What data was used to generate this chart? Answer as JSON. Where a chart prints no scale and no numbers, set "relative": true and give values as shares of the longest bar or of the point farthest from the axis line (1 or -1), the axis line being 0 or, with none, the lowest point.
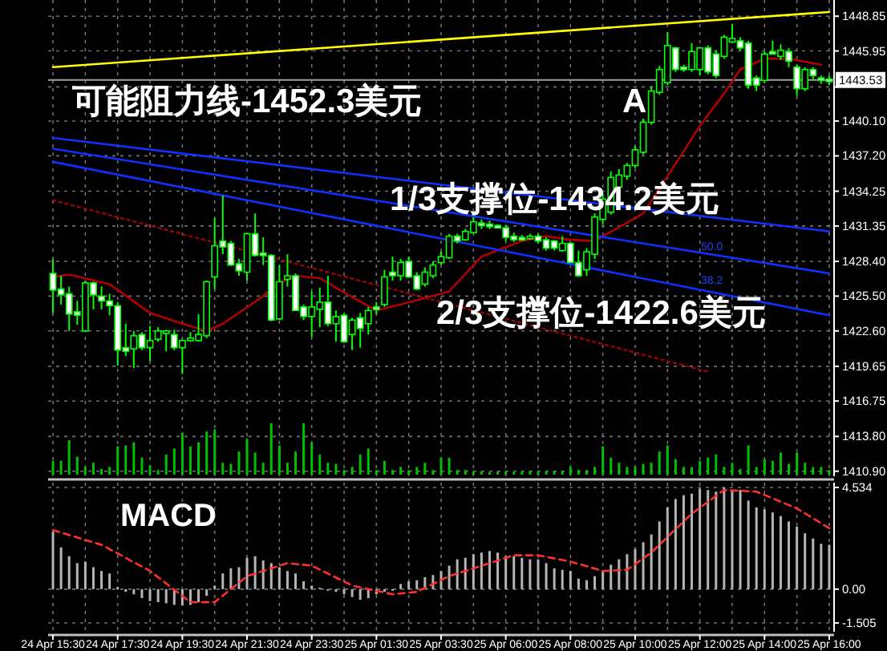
{
  "chart_data": [
    {
      "type": "candlestick",
      "color": "#00ff00",
      "grid": true,
      "categories": [
        null,
        null,
        null,
        null,
        null,
        null,
        null,
        null,
        null,
        null,
        null,
        null,
        null,
        null,
        null,
        null,
        null,
        null,
        null,
        null,
        null,
        null,
        null,
        null,
        null,
        null,
        null,
        null,
        null,
        null,
        null,
        null,
        null,
        null,
        null,
        null,
        null,
        null,
        null,
        null,
        null,
        null,
        null,
        null,
        null,
        null,
        null,
        null,
        null,
        null,
        null,
        null,
        null,
        null,
        null,
        null,
        null,
        null,
        null,
        null,
        null,
        null,
        null,
        null,
        null,
        null,
        null,
        null,
        null,
        null,
        null,
        null,
        null,
        null,
        null,
        null,
        null,
        null,
        null,
        null,
        null,
        null,
        null,
        null,
        null,
        null,
        null,
        null,
        null,
        null,
        null,
        null,
        null,
        null,
        null,
        null,
        null
      ],
      "ohlc": [
        [
          1427.4,
          1428.6,
          1424.1,
          1426.0
        ],
        [
          1426.1,
          1427.2,
          1424.8,
          1425.6
        ],
        [
          1425.7,
          1426.3,
          1422.6,
          1424.0
        ],
        [
          1424.2,
          1425.1,
          1423.1,
          1423.9
        ],
        [
          1422.6,
          1426.8,
          1422.5,
          1426.6
        ],
        [
          1426.6,
          1426.7,
          1424.4,
          1425.6
        ],
        [
          1425.5,
          1426.3,
          1424.4,
          1425.1
        ],
        [
          1425.1,
          1425.7,
          1423.9,
          1424.7
        ],
        [
          1424.7,
          1425.0,
          1419.7,
          1421.0
        ],
        [
          1421.2,
          1423.2,
          1420.5,
          1420.9
        ],
        [
          1421.1,
          1422.6,
          1419.5,
          1422.2
        ],
        [
          1422.3,
          1422.5,
          1421.0,
          1421.2
        ],
        [
          1421.2,
          1423.0,
          1420.1,
          1421.8
        ],
        [
          1421.9,
          1422.9,
          1421.7,
          1422.6
        ],
        [
          1422.5,
          1422.7,
          1420.9,
          1422.6
        ],
        [
          1422.3,
          1422.7,
          1421.0,
          1421.2
        ],
        [
          1421.2,
          1421.9,
          1419.0,
          1421.8
        ],
        [
          1421.8,
          1422.5,
          1421.7,
          1422.0
        ],
        [
          1421.8,
          1424.0,
          1421.7,
          1422.3
        ],
        [
          1422.2,
          1426.8,
          1422.0,
          1426.7
        ],
        [
          1427.1,
          1432.0,
          1426.1,
          1429.7
        ],
        [
          1430.1,
          1433.9,
          1429.0,
          1429.6
        ],
        [
          1429.9,
          1430.1,
          1428.0,
          1428.1
        ],
        [
          1428.2,
          1428.6,
          1427.2,
          1427.6
        ],
        [
          1427.5,
          1430.8,
          1426.8,
          1430.7
        ],
        [
          1430.7,
          1432.4,
          1428.8,
          1428.9
        ],
        [
          1429.1,
          1430.4,
          1428.1,
          1429.0
        ],
        [
          1428.9,
          1429.0,
          1423.4,
          1423.5
        ],
        [
          1423.6,
          1428.1,
          1423.5,
          1426.7
        ],
        [
          1426.9,
          1429.0,
          1426.3,
          1427.2
        ],
        [
          1427.2,
          1427.4,
          1424.3,
          1424.3
        ],
        [
          1424.6,
          1424.8,
          1423.5,
          1423.8
        ],
        [
          1423.8,
          1425.9,
          1422.1,
          1424.6
        ],
        [
          1424.4,
          1426.2,
          1422.9,
          1425.0
        ],
        [
          1425.0,
          1427.2,
          1423.0,
          1423.2
        ],
        [
          1423.2,
          1424.3,
          1421.7,
          1423.8
        ],
        [
          1423.9,
          1424.1,
          1421.6,
          1421.7
        ],
        [
          1422.3,
          1423.7,
          1421.0,
          1423.5
        ],
        [
          1423.7,
          1424.1,
          1421.2,
          1422.8
        ],
        [
          1423.2,
          1424.6,
          1422.3,
          1424.3
        ],
        [
          1424.6,
          1425.0,
          1424.0,
          1424.4
        ],
        [
          1424.8,
          1427.7,
          1424.6,
          1427.1
        ],
        [
          1427.5,
          1428.8,
          1426.8,
          1427.2
        ],
        [
          1427.2,
          1428.6,
          1426.8,
          1428.3
        ],
        [
          1428.4,
          1428.8,
          1427.0,
          1427.1
        ],
        [
          1427.2,
          1427.5,
          1426.0,
          1426.1
        ],
        [
          1426.5,
          1427.9,
          1426.3,
          1427.5
        ],
        [
          1427.2,
          1428.4,
          1427.0,
          1428.1
        ],
        [
          1428.3,
          1429.2,
          1428.1,
          1428.8
        ],
        [
          1428.7,
          1430.7,
          1428.6,
          1430.5
        ],
        [
          1430.5,
          1430.7,
          1429.9,
          1430.1
        ],
        [
          1430.2,
          1431.1,
          1430.1,
          1430.9
        ],
        [
          1430.8,
          1432.1,
          1430.7,
          1431.7
        ],
        [
          1431.6,
          1431.9,
          1431.1,
          1431.4
        ],
        [
          1431.5,
          1431.8,
          1431.1,
          1431.4
        ],
        [
          1431.4,
          1431.5,
          1431.2,
          1431.3
        ],
        [
          1431.2,
          1431.4,
          1430.1,
          1430.4
        ],
        [
          1430.5,
          1430.8,
          1430.0,
          1430.2
        ],
        [
          1430.4,
          1430.6,
          1430.1,
          1430.3
        ],
        [
          1430.3,
          1430.7,
          1430.2,
          1430.5
        ],
        [
          1430.5,
          1430.7,
          1429.9,
          1430.1
        ],
        [
          1430.2,
          1430.4,
          1429.3,
          1429.5
        ],
        [
          1430.1,
          1430.2,
          1429.3,
          1429.5
        ],
        [
          1429.3,
          1430.5,
          1429.2,
          1429.9
        ],
        [
          1429.9,
          1430.0,
          1428.3,
          1428.3
        ],
        [
          1428.3,
          1429.3,
          1427.1,
          1427.2
        ],
        [
          1427.7,
          1429.5,
          1427.2,
          1429.2
        ],
        [
          1429.0,
          1432.4,
          1428.6,
          1432.1
        ],
        [
          1431.9,
          1434.0,
          1431.5,
          1433.6
        ],
        [
          1432.5,
          1435.9,
          1432.3,
          1435.4
        ],
        [
          1434.6,
          1436.1,
          1434.2,
          1435.6
        ],
        [
          1435.5,
          1436.6,
          1435.2,
          1436.4
        ],
        [
          1436.4,
          1438.0,
          1436.2,
          1437.7
        ],
        [
          1437.5,
          1440.3,
          1437.3,
          1440.0
        ],
        [
          1440.0,
          1443.0,
          1439.8,
          1442.6
        ],
        [
          1442.5,
          1444.7,
          1442.3,
          1444.4
        ],
        [
          1443.3,
          1447.5,
          1443.1,
          1446.4
        ],
        [
          1446.2,
          1446.3,
          1444.2,
          1444.4
        ],
        [
          1444.6,
          1444.8,
          1444.2,
          1444.4
        ],
        [
          1444.4,
          1446.6,
          1444.2,
          1445.9
        ],
        [
          1444.4,
          1446.3,
          1443.9,
          1446.2
        ],
        [
          1446.2,
          1446.4,
          1444.0,
          1444.2
        ],
        [
          1445.7,
          1446.0,
          1443.7,
          1443.9
        ],
        [
          1445.5,
          1447.3,
          1445.3,
          1447.1
        ],
        [
          1446.7,
          1448.2,
          1446.6,
          1447.0
        ],
        [
          1446.8,
          1447.1,
          1446.0,
          1446.2
        ],
        [
          1446.6,
          1446.8,
          1442.8,
          1443.1
        ],
        [
          1443.7,
          1443.9,
          1442.6,
          1443.1
        ],
        [
          1443.5,
          1445.9,
          1443.3,
          1445.7
        ],
        [
          1445.9,
          1446.8,
          1445.7,
          1445.7
        ],
        [
          1445.5,
          1446.5,
          1445.2,
          1446.0
        ],
        [
          1445.9,
          1446.2,
          1444.6,
          1445.1
        ],
        [
          1444.6,
          1444.8,
          1442.2,
          1442.8
        ],
        [
          1442.8,
          1444.6,
          1442.6,
          1444.4
        ],
        [
          1444.4,
          1444.6,
          1443.6,
          1443.9
        ],
        [
          1443.7,
          1443.9,
          1443.2,
          1443.5
        ],
        [
          1443.6,
          1443.9,
          1443.1,
          1443.5
        ]
      ],
      "ylim": [
        1410.48,
        1450.2
      ],
      "yticks": [
        {
          "value": 1410.9,
          "label": "1410.90"
        },
        {
          "value": 1413.8,
          "label": "1413.80"
        },
        {
          "value": 1416.75,
          "label": "1416.75"
        },
        {
          "value": 1419.65,
          "label": "1419.65"
        },
        {
          "value": 1422.6,
          "label": "1422.60"
        },
        {
          "value": 1425.5,
          "label": "1425.50"
        },
        {
          "value": 1428.4,
          "label": "1428.40"
        },
        {
          "value": 1431.35,
          "label": "1431.35"
        },
        {
          "value": 1434.25,
          "label": "1434.25"
        },
        {
          "value": 1437.2,
          "label": "1437.20"
        },
        {
          "value": 1440.1,
          "label": "1440.10"
        },
        {
          "value": 1442.95,
          "label": null
        },
        {
          "value": 1445.95,
          "label": "1445.95"
        },
        {
          "value": 1448.85,
          "label": "1448.85"
        }
      ],
      "ref_lines": [
        {
          "axis": "y",
          "value": 1443.53,
          "label": "1443.53",
          "color": "#a0a0a0"
        }
      ],
      "annotations": [
        "可能阻力线-1452.3美元",
        "A",
        "1/3支撑位-1434.2美元",
        "2/3支撑位-1422.6美元",
        "50.0",
        "38.2"
      ],
      "series": [
        {
          "type": "line",
          "color": "#b00000",
          "values": [
            1427.1,
            null,
            1427.3,
            null,
            null,
            null,
            null,
            1426.5,
            null,
            null,
            null,
            null,
            1424.1,
            null,
            null,
            null,
            1423.2,
            null,
            null,
            1422.6,
            null,
            1423.2,
            null,
            null,
            null,
            null,
            1425.5,
            null,
            1426.6,
            null,
            1427.2,
            null,
            null,
            1427.0,
            null,
            null,
            1425.8,
            null,
            null,
            null,
            1424.3,
            null,
            null,
            1424.8,
            null,
            null,
            null,
            null,
            null,
            1425.9,
            null,
            null,
            null,
            1428.8,
            null,
            null,
            null,
            null,
            1430.1,
            null,
            null,
            1430.5,
            null,
            null,
            1430.2,
            null,
            null,
            1430.1,
            null,
            null,
            null,
            null,
            null,
            1432.4,
            null,
            null,
            1435.5,
            null,
            null,
            null,
            1439.7,
            null,
            null,
            1442.4,
            null,
            1444.4,
            null,
            null,
            1445.3,
            null,
            null,
            1445.3,
            null,
            null,
            null,
            1444.8,
            null
          ]
        },
        {
          "type": "line",
          "color": "#ffff00",
          "values": [
            1444.6,
            null,
            null,
            null,
            null,
            null,
            null,
            null,
            null,
            null,
            null,
            null,
            null,
            null,
            null,
            null,
            null,
            null,
            null,
            null,
            null,
            null,
            null,
            null,
            null,
            null,
            null,
            null,
            null,
            null,
            null,
            null,
            null,
            null,
            null,
            null,
            null,
            null,
            null,
            null,
            null,
            null,
            null,
            null,
            null,
            null,
            null,
            null,
            null,
            null,
            null,
            null,
            null,
            null,
            null,
            null,
            null,
            null,
            null,
            null,
            null,
            null,
            null,
            null,
            null,
            null,
            null,
            null,
            null,
            null,
            null,
            null,
            null,
            null,
            null,
            null,
            null,
            null,
            null,
            null,
            null,
            null,
            null,
            null,
            null,
            null,
            null,
            null,
            null,
            null,
            null,
            null,
            null,
            null,
            null,
            null,
            1449.2
          ]
        },
        {
          "type": "line",
          "color": "#1030ff",
          "values": [
            1438.7,
            null,
            null,
            null,
            null,
            null,
            null,
            null,
            null,
            null,
            null,
            null,
            null,
            null,
            null,
            null,
            null,
            null,
            null,
            null,
            null,
            null,
            null,
            null,
            null,
            null,
            null,
            null,
            null,
            null,
            null,
            null,
            null,
            null,
            null,
            null,
            null,
            null,
            null,
            null,
            null,
            null,
            null,
            null,
            null,
            null,
            null,
            null,
            null,
            null,
            null,
            null,
            null,
            null,
            null,
            null,
            null,
            null,
            null,
            null,
            null,
            null,
            null,
            null,
            null,
            null,
            null,
            null,
            null,
            null,
            null,
            null,
            null,
            null,
            null,
            null,
            null,
            null,
            null,
            null,
            null,
            null,
            null,
            null,
            null,
            null,
            null,
            null,
            null,
            null,
            null,
            null,
            null,
            null,
            null,
            null,
            1430.9
          ]
        },
        {
          "type": "line",
          "color": "#1030ff",
          "values": [
            1437.8,
            null,
            null,
            null,
            null,
            null,
            null,
            null,
            null,
            null,
            null,
            null,
            null,
            null,
            null,
            null,
            null,
            null,
            null,
            null,
            null,
            null,
            null,
            null,
            null,
            null,
            null,
            null,
            null,
            null,
            null,
            null,
            null,
            null,
            null,
            null,
            null,
            null,
            null,
            null,
            null,
            null,
            null,
            null,
            null,
            null,
            null,
            null,
            null,
            null,
            null,
            null,
            null,
            null,
            null,
            null,
            null,
            null,
            null,
            null,
            null,
            null,
            null,
            null,
            null,
            null,
            null,
            null,
            null,
            null,
            null,
            null,
            null,
            null,
            null,
            null,
            null,
            null,
            null,
            null,
            null,
            null,
            null,
            null,
            null,
            null,
            null,
            null,
            null,
            null,
            null,
            null,
            null,
            null,
            null,
            null,
            1427.4
          ]
        },
        {
          "type": "line",
          "color": "#1030ff",
          "values": [
            1436.7,
            null,
            null,
            null,
            null,
            null,
            null,
            null,
            null,
            null,
            null,
            null,
            null,
            null,
            null,
            null,
            null,
            null,
            null,
            null,
            null,
            null,
            null,
            null,
            null,
            null,
            null,
            null,
            null,
            null,
            null,
            null,
            null,
            null,
            null,
            null,
            null,
            null,
            null,
            null,
            null,
            null,
            null,
            null,
            null,
            null,
            null,
            null,
            null,
            null,
            null,
            null,
            null,
            null,
            null,
            null,
            null,
            null,
            null,
            null,
            null,
            null,
            null,
            null,
            null,
            null,
            null,
            null,
            null,
            null,
            null,
            null,
            null,
            null,
            null,
            null,
            null,
            null,
            null,
            null,
            null,
            null,
            null,
            null,
            null,
            null,
            null,
            null,
            null,
            null,
            null,
            null,
            null,
            null,
            null,
            null,
            1423.9
          ]
        },
        {
          "type": "line",
          "color": "#a00000",
          "line_style": "dotted",
          "values": [
            1433.5,
            null,
            null,
            null,
            null,
            null,
            null,
            null,
            null,
            null,
            null,
            null,
            null,
            null,
            null,
            null,
            null,
            null,
            null,
            null,
            null,
            null,
            null,
            null,
            null,
            null,
            null,
            null,
            null,
            null,
            null,
            null,
            null,
            null,
            null,
            null,
            null,
            null,
            null,
            null,
            null,
            null,
            null,
            null,
            null,
            null,
            null,
            null,
            null,
            null,
            null,
            null,
            null,
            null,
            null,
            null,
            null,
            null,
            null,
            null,
            null,
            null,
            null,
            null,
            null,
            null,
            null,
            null,
            null,
            null,
            null,
            null,
            null,
            null,
            null,
            null,
            null,
            null,
            null,
            null,
            null,
            1419.2,
            null,
            null,
            null,
            null,
            null,
            null,
            null,
            null,
            null,
            null,
            null,
            null,
            null,
            null,
            null
          ]
        }
      ]
    },
    {
      "type": "bar",
      "relative": true,
      "color": "#00c000",
      "categories": [
        null,
        null,
        null,
        null,
        null,
        null,
        null,
        null,
        null,
        null,
        null,
        null,
        null,
        null,
        null,
        null,
        null,
        null,
        null,
        null,
        null,
        null,
        null,
        null,
        null,
        null,
        null,
        null,
        null,
        null,
        null,
        null,
        null,
        null,
        null,
        null,
        null,
        null,
        null,
        null,
        null,
        null,
        null,
        null,
        null,
        null,
        null,
        null,
        null,
        null,
        null,
        null,
        null,
        null,
        null,
        null,
        null,
        null,
        null,
        null,
        null,
        null,
        null,
        null,
        null,
        null,
        null,
        null,
        null,
        null,
        null,
        null,
        null,
        null,
        null,
        null,
        null,
        null,
        null,
        null,
        null,
        null,
        null,
        null,
        null,
        null,
        null,
        null,
        null,
        null,
        null,
        null,
        null,
        null,
        null,
        null,
        null
      ],
      "values": [
        0.27,
        0.27,
        0.67,
        0.35,
        0.15,
        0.23,
        0.11,
        0.15,
        0.55,
        0.57,
        0.63,
        0.33,
        0.18,
        0.09,
        0.39,
        0.51,
        0.82,
        0.55,
        0.63,
        0.84,
        0.88,
        0.23,
        0.21,
        0.45,
        0.7,
        0.43,
        0.23,
        1,
        0.57,
        0.23,
        0.45,
        1,
        0.63,
        0.39,
        0.23,
        0.21,
        0.09,
        0.15,
        0.39,
        0.51,
        0.09,
        0.27,
        0.09,
        0.15,
        0.09,
        0.15,
        0.23,
        0.09,
        0.33,
        0.33,
        0.09,
        0.09,
        0.06,
        0.06,
        0.05,
        0.06,
        0.06,
        0.05,
        0.06,
        0.07,
        0.06,
        0.06,
        0.07,
        0.06,
        0.15,
        0.09,
        0.09,
        0.15,
        0.55,
        0.33,
        0.23,
        0.15,
        0.15,
        0.21,
        0.23,
        0.45,
        0.57,
        0.3,
        0.15,
        0.15,
        0.27,
        0.33,
        0.39,
        0.15,
        0.23,
        0.11,
        0.57,
        0.15,
        0.3,
        0.27,
        0.43,
        0.21,
        0.43,
        0.23,
        0.15,
        0.15,
        0.09
      ]
    },
    {
      "type": "bar",
      "title": "MACD",
      "grid": true,
      "categories": [
        "24 Apr 15:30",
        null,
        null,
        null,
        null,
        null,
        null,
        null,
        "24 Apr 17:30",
        null,
        null,
        null,
        null,
        null,
        null,
        null,
        "24 Apr 19:30",
        null,
        null,
        null,
        null,
        null,
        null,
        null,
        "24 Apr 21:30",
        null,
        null,
        null,
        null,
        null,
        null,
        null,
        "24 Apr 23:30",
        null,
        null,
        null,
        null,
        null,
        null,
        null,
        "25 Apr 01:30",
        null,
        null,
        null,
        null,
        null,
        null,
        null,
        "25 Apr 03:30",
        null,
        null,
        null,
        null,
        null,
        null,
        null,
        "25 Apr 06:00",
        null,
        null,
        null,
        null,
        null,
        null,
        null,
        "25 Apr 08:00",
        null,
        null,
        null,
        null,
        null,
        null,
        null,
        "25 Apr 10:00",
        null,
        null,
        null,
        null,
        null,
        null,
        null,
        "25 Apr 12:00",
        null,
        null,
        null,
        null,
        null,
        null,
        null,
        "25 Apr 14:00",
        null,
        null,
        null,
        null,
        null,
        null,
        null,
        "25 Apr 16:00"
      ],
      "ylim": [
        -1.9,
        4.75
      ],
      "yticks": [
        4.534,
        {
          "value": 0,
          "label": "0.00"
        },
        -1.505
      ],
      "series": [
        {
          "type": "bar",
          "color": "#b4b4b4",
          "values": [
            2.56,
            1.86,
            1.47,
            1.16,
            1.23,
            0.98,
            0.81,
            0.7,
            0.1,
            -0.12,
            -0.23,
            -0.4,
            -0.53,
            -0.58,
            -0.63,
            -0.7,
            -0.72,
            -0.7,
            -0.58,
            -0.3,
            0.16,
            0.7,
            0.93,
            0.98,
            1.4,
            1.47,
            1.28,
            1.16,
            0.98,
            0.81,
            0.7,
            0.35,
            0.16,
            0.07,
            -0.07,
            -0.12,
            -0.23,
            -0.35,
            -0.47,
            -0.4,
            -0.23,
            -0.12,
            -0.07,
            0.23,
            0.35,
            0.4,
            0.53,
            0.63,
            0.81,
            1.05,
            1.33,
            1.4,
            1.56,
            1.63,
            1.7,
            1.63,
            1.47,
            1.47,
            1.4,
            1.33,
            1.33,
            1.16,
            0.93,
            0.86,
            0.81,
            0.47,
            0.4,
            0.58,
            0.81,
            1.09,
            1.33,
            1.56,
            1.79,
            2.09,
            2.44,
            3.02,
            3.65,
            4.02,
            4.19,
            4.26,
            4.49,
            4.42,
            4.35,
            4.53,
            4.42,
            4.42,
            3.95,
            3.65,
            3.56,
            3.42,
            3.26,
            3.02,
            2.79,
            2.49,
            2.26,
            2.02,
            1.98
          ]
        },
        {
          "type": "line",
          "color": "#ff3030",
          "line_style": "dashed",
          "values": [
            2.63,
            null,
            null,
            null,
            null,
            null,
            1.98,
            null,
            null,
            null,
            null,
            null,
            0.81,
            null,
            null,
            null,
            null,
            -0.58,
            null,
            null,
            -0.58,
            null,
            null,
            null,
            0.58,
            null,
            null,
            null,
            null,
            1.16,
            null,
            null,
            1.05,
            null,
            null,
            null,
            null,
            0.16,
            null,
            null,
            null,
            null,
            -0.23,
            null,
            null,
            -0.12,
            null,
            null,
            null,
            0.58,
            null,
            0.81,
            null,
            null,
            null,
            null,
            null,
            1.51,
            null,
            null,
            1.51,
            null,
            null,
            null,
            1.23,
            null,
            null,
            null,
            0.81,
            null,
            null,
            0.86,
            null,
            null,
            1.63,
            null,
            null,
            null,
            null,
            3.37,
            null,
            null,
            null,
            4.42,
            null,
            null,
            null,
            4.35,
            null,
            null,
            null,
            null,
            3.6,
            null,
            null,
            null,
            2.72
          ]
        }
      ]
    }
  ]
}
